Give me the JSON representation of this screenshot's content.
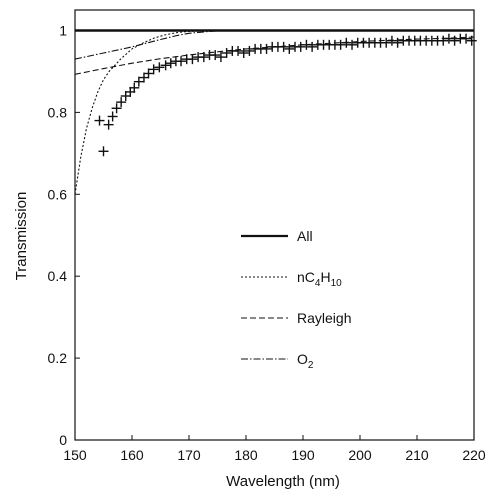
{
  "chart_data": {
    "type": "line",
    "title": "",
    "xlabel": "Wavelength (nm)",
    "ylabel": "Transmission",
    "xlim": [
      150,
      220
    ],
    "ylim": [
      0,
      1.05
    ],
    "x_ticks": [
      150,
      160,
      170,
      180,
      190,
      200,
      210,
      220
    ],
    "y_ticks": [
      0,
      0.2,
      0.4,
      0.6,
      0.8,
      1
    ],
    "x_tick_labels": [
      "150",
      "160",
      "170",
      "180",
      "190",
      "200",
      "210",
      "220"
    ],
    "y_tick_labels": [
      "0",
      "0.2",
      "0.4",
      "0.6",
      "0.8",
      "1"
    ],
    "grid": false,
    "legend_placement": "center",
    "legend": [
      {
        "label": "All",
        "style": "solid"
      },
      {
        "label_main": "nC",
        "label_sub1": "4",
        "label_mid": "H",
        "label_sub2": "10",
        "style": "dotted"
      },
      {
        "label": "Rayleigh",
        "style": "dashed"
      },
      {
        "label_main": "O",
        "label_sub1": "2",
        "style": "dashdot"
      }
    ],
    "series": [
      {
        "key": "all",
        "style": "solid",
        "x": [
          150,
          155,
          160,
          170,
          180,
          190,
          200,
          210,
          220
        ],
        "y": [
          1,
          1,
          1,
          1,
          1,
          1,
          1,
          1,
          1
        ]
      },
      {
        "key": "nC4H10",
        "style": "dotted",
        "x": [
          150,
          151,
          152,
          153,
          154,
          155,
          156,
          158,
          160,
          162,
          164,
          166,
          168,
          170,
          175,
          180,
          220
        ],
        "y": [
          0.6,
          0.69,
          0.76,
          0.81,
          0.85,
          0.88,
          0.9,
          0.93,
          0.955,
          0.97,
          0.982,
          0.99,
          0.995,
          0.998,
          1.0,
          1.0,
          1.0
        ]
      },
      {
        "key": "Rayleigh",
        "style": "dashed",
        "x": [
          150,
          155,
          160,
          165,
          170,
          175,
          180,
          185,
          190,
          195,
          200,
          205,
          210,
          215,
          220
        ],
        "y": [
          0.893,
          0.907,
          0.92,
          0.931,
          0.94,
          0.948,
          0.955,
          0.96,
          0.965,
          0.969,
          0.973,
          0.976,
          0.979,
          0.981,
          0.984
        ]
      },
      {
        "key": "O2",
        "style": "dashdot",
        "x": [
          150,
          155,
          160,
          165,
          168,
          170,
          173,
          175,
          180,
          220
        ],
        "y": [
          0.93,
          0.945,
          0.96,
          0.978,
          0.988,
          0.993,
          0.997,
          0.999,
          1.0,
          1.0
        ]
      },
      {
        "key": "measured",
        "style": "markers",
        "x": [
          154.3,
          155.0,
          155.9,
          156.6,
          157.3,
          158.1,
          158.9,
          159.7,
          160.4,
          161.2,
          162.1,
          162.9,
          163.8,
          164.8,
          165.9,
          166.8,
          167.7,
          168.6,
          169.6,
          170.6,
          171.6,
          172.6,
          173.6,
          174.6,
          175.6,
          176.6,
          177.6,
          178.6,
          179.6,
          180.6,
          181.6,
          182.6,
          183.6,
          184.6,
          185.6,
          186.6,
          187.6,
          188.6,
          189.6,
          190.6,
          191.6,
          192.6,
          193.6,
          194.6,
          195.6,
          196.6,
          197.6,
          198.6,
          199.6,
          200.6,
          201.6,
          202.6,
          203.6,
          204.6,
          205.6,
          206.6,
          207.6,
          208.6,
          209.6,
          210.6,
          211.6,
          212.6,
          213.6,
          214.6,
          215.6,
          216.6,
          217.6,
          218.6,
          219.6
        ],
        "y": [
          0.78,
          0.705,
          0.77,
          0.79,
          0.81,
          0.825,
          0.84,
          0.85,
          0.86,
          0.875,
          0.885,
          0.895,
          0.905,
          0.91,
          0.915,
          0.92,
          0.925,
          0.925,
          0.93,
          0.93,
          0.935,
          0.935,
          0.94,
          0.94,
          0.935,
          0.945,
          0.95,
          0.95,
          0.945,
          0.95,
          0.955,
          0.955,
          0.955,
          0.96,
          0.96,
          0.96,
          0.955,
          0.96,
          0.96,
          0.965,
          0.96,
          0.965,
          0.965,
          0.965,
          0.965,
          0.965,
          0.97,
          0.965,
          0.97,
          0.97,
          0.97,
          0.97,
          0.97,
          0.97,
          0.975,
          0.97,
          0.975,
          0.975,
          0.975,
          0.975,
          0.975,
          0.975,
          0.975,
          0.975,
          0.98,
          0.975,
          0.98,
          0.98,
          0.975
        ]
      }
    ]
  }
}
